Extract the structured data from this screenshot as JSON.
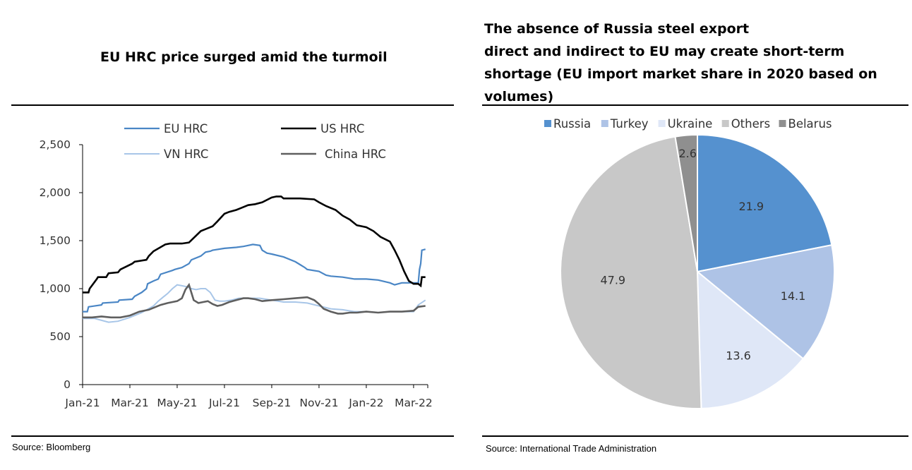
{
  "left_panel": {
    "title": "EU HRC price surged amid the turmoil",
    "source": "Source: Bloomberg"
  },
  "right_panel": {
    "title_lines": [
      "The absence of Russia steel export",
      "direct and indirect to EU may create short-term",
      "shortage (EU import market share in 2020 based on",
      "volumes)"
    ],
    "source": "Source: International Trade Administration"
  },
  "chart_data": [
    {
      "type": "line",
      "title": "EU HRC price surged amid the turmoil",
      "xlabel": "",
      "ylabel": "",
      "x_ticks": [
        "Jan-21",
        "Mar-21",
        "May-21",
        "Jul-21",
        "Sep-21",
        "Nov-21",
        "Jan-22",
        "Mar-22"
      ],
      "x_range_months": [
        0,
        14.6
      ],
      "ylim": [
        0,
        2500
      ],
      "y_ticks": [
        0,
        500,
        1000,
        1500,
        2000,
        2500
      ],
      "y_tick_labels": [
        "0",
        "500",
        "1,000",
        "1,500",
        "2,000",
        "2,500"
      ],
      "legend_position": "top",
      "series": [
        {
          "name": "EU HRC",
          "color": "#4a86c5",
          "x": [
            0,
            0.2,
            0.25,
            0.8,
            0.85,
            1.5,
            1.55,
            2.1,
            2.2,
            2.5,
            2.7,
            2.75,
            3.0,
            3.2,
            3.3,
            3.8,
            3.9,
            4.2,
            4.5,
            4.6,
            5.0,
            5.2,
            5.4,
            5.5,
            6.0,
            6.5,
            6.8,
            7.0,
            7.2,
            7.5,
            7.6,
            7.8,
            8.0,
            8.5,
            9.0,
            9.2,
            9.4,
            9.5,
            10.0,
            10.3,
            10.5,
            11.0,
            11.5,
            12.0,
            12.5,
            13.0,
            13.2,
            13.5,
            13.8,
            14.0,
            14.2,
            14.25,
            14.3,
            14.35,
            14.5
          ],
          "values": [
            760,
            760,
            810,
            830,
            850,
            860,
            880,
            890,
            920,
            960,
            1000,
            1050,
            1080,
            1100,
            1150,
            1190,
            1200,
            1220,
            1260,
            1300,
            1340,
            1380,
            1390,
            1400,
            1420,
            1430,
            1440,
            1450,
            1460,
            1450,
            1400,
            1370,
            1360,
            1330,
            1280,
            1250,
            1220,
            1200,
            1180,
            1140,
            1130,
            1120,
            1100,
            1100,
            1090,
            1060,
            1040,
            1060,
            1060,
            1060,
            1060,
            1200,
            1260,
            1400,
            1410
          ]
        },
        {
          "name": "US HRC",
          "color": "#000000",
          "x": [
            0,
            0.25,
            0.3,
            0.6,
            0.65,
            1.0,
            1.1,
            1.5,
            1.6,
            2.1,
            2.2,
            2.7,
            2.8,
            3.0,
            3.5,
            3.7,
            4.2,
            4.5,
            5.0,
            5.2,
            5.5,
            5.7,
            6.0,
            6.2,
            6.5,
            6.7,
            7.0,
            7.3,
            7.6,
            8.0,
            8.2,
            8.4,
            8.5,
            8.8,
            9.2,
            9.8,
            10.0,
            10.3,
            10.7,
            11.0,
            11.3,
            11.6,
            12.0,
            12.3,
            12.6,
            13.0,
            13.2,
            13.4,
            13.6,
            13.8,
            14.0,
            14.2,
            14.3,
            14.35,
            14.5
          ],
          "values": [
            960,
            960,
            1000,
            1100,
            1120,
            1120,
            1160,
            1170,
            1200,
            1260,
            1280,
            1300,
            1340,
            1390,
            1460,
            1470,
            1470,
            1480,
            1600,
            1620,
            1650,
            1700,
            1780,
            1800,
            1820,
            1840,
            1870,
            1880,
            1900,
            1950,
            1960,
            1960,
            1940,
            1940,
            1940,
            1930,
            1900,
            1860,
            1820,
            1760,
            1720,
            1660,
            1640,
            1600,
            1540,
            1490,
            1400,
            1300,
            1180,
            1080,
            1050,
            1050,
            1030,
            1120,
            1120
          ]
        },
        {
          "name": "VN HRC",
          "color": "#a8c6e8",
          "x": [
            0,
            0.5,
            0.8,
            1.1,
            1.5,
            2.0,
            2.5,
            3.0,
            3.2,
            3.4,
            3.6,
            3.8,
            4.0,
            4.2,
            4.4,
            4.6,
            4.8,
            5.0,
            5.2,
            5.4,
            5.6,
            5.8,
            6.0,
            6.3,
            6.6,
            7.0,
            7.5,
            8.0,
            8.5,
            9.0,
            9.5,
            10.0,
            10.5,
            11.0,
            11.5,
            12.0,
            12.5,
            13.0,
            13.5,
            14.0,
            14.2,
            14.5
          ],
          "values": [
            690,
            690,
            670,
            650,
            660,
            700,
            750,
            820,
            870,
            910,
            950,
            1000,
            1040,
            1030,
            1020,
            1000,
            990,
            1000,
            1000,
            960,
            880,
            870,
            870,
            880,
            900,
            900,
            900,
            880,
            860,
            860,
            850,
            820,
            790,
            780,
            760,
            760,
            750,
            760,
            760,
            760,
            830,
            880
          ]
        },
        {
          "name": "China HRC",
          "color": "#5f5f5f",
          "x": [
            0,
            0.4,
            0.8,
            1.2,
            1.6,
            2.0,
            2.4,
            2.8,
            3.0,
            3.3,
            3.6,
            3.8,
            4.0,
            4.2,
            4.35,
            4.5,
            4.7,
            4.9,
            5.1,
            5.3,
            5.5,
            5.7,
            5.9,
            6.2,
            6.5,
            6.8,
            7.0,
            7.3,
            7.6,
            8.0,
            8.5,
            9.0,
            9.5,
            9.8,
            10.0,
            10.2,
            10.5,
            10.8,
            11.0,
            11.3,
            11.6,
            12.0,
            12.5,
            13.0,
            13.5,
            14.0,
            14.2,
            14.5
          ],
          "values": [
            700,
            700,
            710,
            700,
            700,
            720,
            760,
            780,
            800,
            830,
            850,
            860,
            870,
            900,
            990,
            1040,
            880,
            850,
            860,
            870,
            840,
            820,
            830,
            860,
            880,
            900,
            900,
            890,
            870,
            880,
            890,
            900,
            910,
            880,
            840,
            790,
            760,
            740,
            740,
            750,
            750,
            760,
            750,
            760,
            760,
            770,
            810,
            820
          ]
        }
      ]
    },
    {
      "type": "pie",
      "title": "The absence of Russia steel export direct and indirect to EU may create short-term shortage (EU import market share in 2020 based on volumes)",
      "legend_position": "top",
      "categories": [
        "Russia",
        "Turkey",
        "Ukraine",
        "Others",
        "Belarus"
      ],
      "values": [
        21.9,
        14.1,
        13.6,
        47.9,
        2.6
      ],
      "value_labels": [
        "21.9",
        "14.1",
        "13.6",
        "47.9",
        "2.6"
      ],
      "colors": [
        "#5591cf",
        "#aec3e6",
        "#dfe7f7",
        "#c8c8c8",
        "#8f8f8f"
      ]
    }
  ]
}
